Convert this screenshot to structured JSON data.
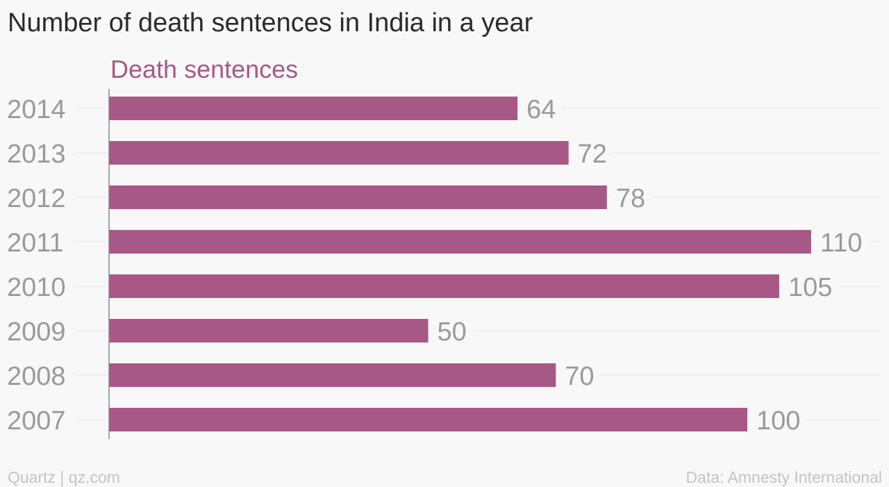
{
  "title": "Number of death sentences in India in a year",
  "footer": {
    "credit": "Quartz | qz.com",
    "source": "Data: Amnesty International"
  },
  "colors": {
    "bar": "#a85887",
    "series_label": "#a85887",
    "value_label": "#9a9a9a",
    "category_label": "#9a9a9a",
    "gridline": "#e4e4e4",
    "axis": "#888888"
  },
  "chart_data": {
    "type": "bar",
    "orientation": "horizontal",
    "categories": [
      "2014",
      "2013",
      "2012",
      "2011",
      "2010",
      "2009",
      "2008",
      "2007"
    ],
    "series": [
      {
        "name": "Death sentences",
        "values": [
          64,
          72,
          78,
          110,
          105,
          50,
          70,
          100
        ]
      }
    ],
    "title": "Number of death sentences in India in a year",
    "xlabel": "",
    "ylabel": "",
    "xlim": [
      0,
      122
    ],
    "grid": true,
    "data_labels": true
  }
}
